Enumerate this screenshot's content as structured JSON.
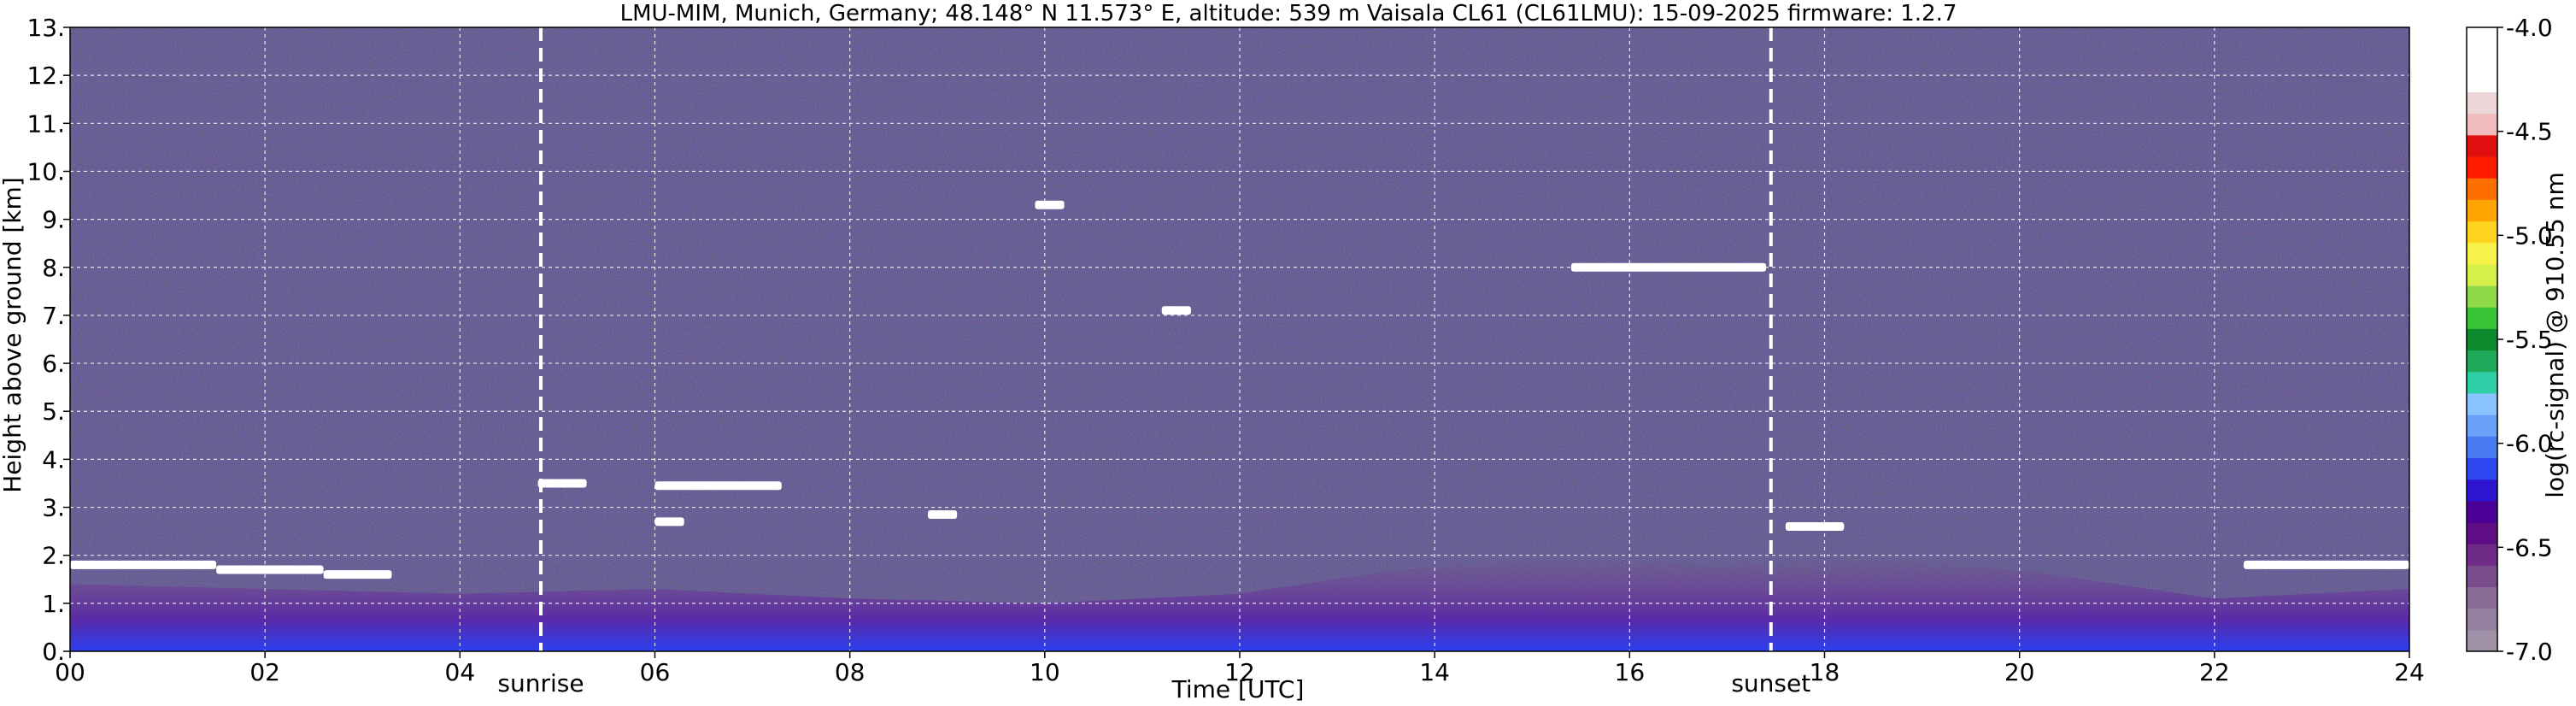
{
  "chart_data": {
    "type": "heatmap",
    "title": "LMU-MIM, Munich, Germany; 48.148° N 11.573° E, altitude: 539 m    Vaisala CL61 (CL61LMU): 15-09-2025    firmware: 1.2.7",
    "xlabel": "Time [UTC]",
    "ylabel": "Height above ground [km]",
    "xlim": [
      0,
      24
    ],
    "ylim": [
      0,
      13
    ],
    "x_ticks": [
      "00",
      "02",
      "04",
      "06",
      "08",
      "10",
      "12",
      "14",
      "16",
      "18",
      "20",
      "22",
      "24"
    ],
    "x_tick_values": [
      0,
      2,
      4,
      6,
      8,
      10,
      12,
      14,
      16,
      18,
      20,
      22,
      24
    ],
    "y_ticks": [
      "0.",
      "1.",
      "2.",
      "3.",
      "4.",
      "5.",
      "6.",
      "7.",
      "8.",
      "9.",
      "10.",
      "11.",
      "12.",
      "13."
    ],
    "y_tick_values": [
      0,
      1,
      2,
      3,
      4,
      5,
      6,
      7,
      8,
      9,
      10,
      11,
      12,
      13
    ],
    "grid": true,
    "colorbar": {
      "label": "log(rc-signal) @ 910.55 nm",
      "range": [
        -7.0,
        -4.0
      ],
      "ticks": [
        "-4.0",
        "-4.5",
        "-5.0",
        "-5.5",
        "-6.0",
        "-6.5",
        "-7.0"
      ],
      "tick_values": [
        -4.0,
        -4.5,
        -5.0,
        -5.5,
        -6.0,
        -6.5,
        -7.0
      ],
      "colors": [
        "#a090a8",
        "#957fa0",
        "#8a6c98",
        "#7a4c8c",
        "#6e2a86",
        "#5e0d84",
        "#4b0096",
        "#2c14d0",
        "#2e49f0",
        "#4a7af4",
        "#6aa0f8",
        "#88c2ff",
        "#2fd0a8",
        "#1faa5a",
        "#0e8a2e",
        "#37c438",
        "#8fd848",
        "#d6ef4a",
        "#f8f24a",
        "#ffd41e",
        "#ffa400",
        "#ff6e00",
        "#ff1d00",
        "#e01010",
        "#f2bcbc",
        "#ecd6d8",
        "#ffffff",
        "#ffffff",
        "#ffffff"
      ]
    },
    "annotations": [
      {
        "label": "sunrise",
        "x": 4.83
      },
      {
        "label": "sunset",
        "x": 17.45
      }
    ],
    "cloud_layers": [
      {
        "t0": 0.0,
        "t1": 1.5,
        "h": 1.8
      },
      {
        "t0": 1.5,
        "t1": 2.6,
        "h": 1.7
      },
      {
        "t0": 2.6,
        "t1": 3.3,
        "h": 1.6
      },
      {
        "t0": 4.8,
        "t1": 5.3,
        "h": 3.5
      },
      {
        "t0": 6.0,
        "t1": 7.3,
        "h": 3.45
      },
      {
        "t0": 6.0,
        "t1": 6.3,
        "h": 2.7
      },
      {
        "t0": 8.8,
        "t1": 9.1,
        "h": 2.85
      },
      {
        "t0": 9.9,
        "t1": 10.2,
        "h": 9.3
      },
      {
        "t0": 11.2,
        "t1": 11.5,
        "h": 7.1
      },
      {
        "t0": 15.4,
        "t1": 17.4,
        "h": 8.0
      },
      {
        "t0": 17.6,
        "t1": 18.2,
        "h": 2.6
      },
      {
        "t0": 22.3,
        "t1": 24.0,
        "h": 1.8
      }
    ]
  }
}
